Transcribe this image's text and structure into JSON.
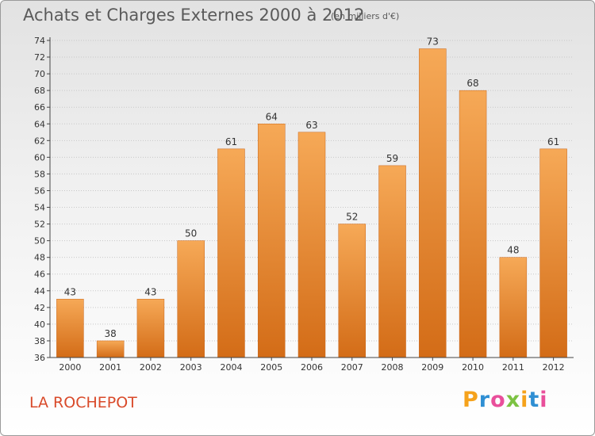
{
  "title": "Achats et Charges Externes 2000 à 2012",
  "subtitle": "(en milliers d'€)",
  "place": "LA ROCHEPOT",
  "brand": {
    "letters": [
      "P",
      "r",
      "o",
      "x",
      "i",
      "t",
      "i"
    ],
    "colors": [
      "#f5a21b",
      "#2f8fd3",
      "#e94f9b",
      "#7cc242",
      "#f5a21b",
      "#2f8fd3",
      "#e94f9b"
    ]
  },
  "colors": {
    "bar_top": "#f6a957",
    "bar_bottom": "#d36c17",
    "axis": "#444444",
    "grid": "#c8c8c8",
    "text": "#333333"
  },
  "chart_data": {
    "type": "bar",
    "categories": [
      "2000",
      "2001",
      "2002",
      "2003",
      "2004",
      "2005",
      "2006",
      "2007",
      "2008",
      "2009",
      "2010",
      "2011",
      "2012"
    ],
    "values": [
      43,
      38,
      43,
      50,
      61,
      64,
      63,
      52,
      59,
      73,
      68,
      48,
      61
    ],
    "title": "Achats et Charges Externes 2000 à 2012",
    "xlabel": "",
    "ylabel": "",
    "ylim": [
      36,
      74
    ],
    "yticks": [
      36,
      38,
      40,
      42,
      44,
      46,
      48,
      50,
      52,
      54,
      56,
      58,
      60,
      62,
      64,
      66,
      68,
      70,
      72,
      74
    ],
    "grid": true,
    "legend": "none"
  }
}
